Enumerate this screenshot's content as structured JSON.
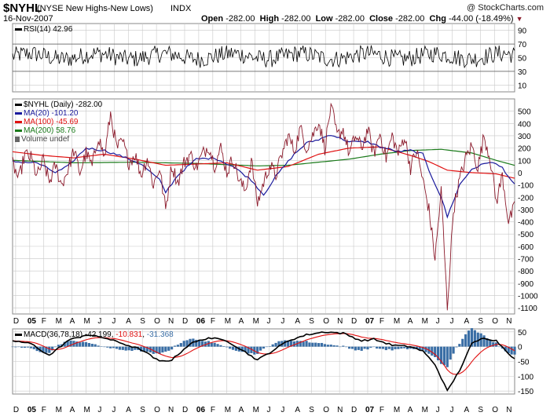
{
  "header": {
    "symbol": "$NYHL",
    "description": "(NYSE New Highs-New Lows)",
    "exchange": "INDX",
    "date": "16-Nov-2007",
    "watermark": "@ StockCharts.com",
    "open_label": "Open",
    "open": "-282.00",
    "high_label": "High",
    "high": "-282.00",
    "low_label": "Low",
    "low": "-282.00",
    "close_label": "Close",
    "close": "-282.00",
    "chg_label": "Chg",
    "chg": "-44.00 (-18.49%)",
    "down_marker": "▼"
  },
  "colors": {
    "price": "#8b1a2b",
    "ma20": "#1a1a9c",
    "ma100": "#e01010",
    "ma200": "#1a7a1a",
    "macd": "#000000",
    "signal": "#e01010",
    "histogram": "#3a6ea5",
    "grid": "#c8c8c8",
    "panel_border": "#888888"
  },
  "chart_data": [
    {
      "type": "line",
      "panel": "RSI",
      "label": "RSI(14) 42.96",
      "ylim": [
        0,
        100
      ],
      "yticks": [
        10,
        30,
        50,
        70,
        90
      ],
      "reference_lines": [
        30,
        70
      ],
      "last_value": 42.96
    },
    {
      "type": "line",
      "panel": "price",
      "title": "$NYHL (Daily) -282.00",
      "ylim": [
        -1150,
        600
      ],
      "yticks": [
        500,
        400,
        300,
        200,
        100,
        0,
        -100,
        -200,
        -300,
        -400,
        -500,
        -600,
        -700,
        -800,
        -900,
        -1000,
        -1100
      ],
      "series": [
        {
          "name": "$NYHL (Daily) -282.00",
          "color_key": "price",
          "points": [
            [
              0,
              80
            ],
            [
              2,
              -60
            ],
            [
              4,
              150
            ],
            [
              6,
              120
            ],
            [
              8,
              -30
            ],
            [
              10,
              100
            ],
            [
              12,
              -80
            ],
            [
              14,
              60
            ],
            [
              16,
              -100
            ],
            [
              18,
              20
            ],
            [
              20,
              180
            ],
            [
              22,
              0
            ],
            [
              24,
              160
            ],
            [
              26,
              50
            ],
            [
              28,
              300
            ],
            [
              30,
              120
            ],
            [
              32,
              480
            ],
            [
              34,
              200
            ],
            [
              36,
              250
            ],
            [
              38,
              80
            ],
            [
              40,
              150
            ],
            [
              42,
              -20
            ],
            [
              44,
              120
            ],
            [
              46,
              -100
            ],
            [
              48,
              40
            ],
            [
              50,
              -300
            ],
            [
              52,
              60
            ],
            [
              54,
              -80
            ],
            [
              56,
              80
            ],
            [
              58,
              150
            ],
            [
              60,
              40
            ],
            [
              62,
              150
            ],
            [
              64,
              220
            ],
            [
              66,
              60
            ],
            [
              68,
              200
            ],
            [
              70,
              0
            ],
            [
              72,
              120
            ],
            [
              74,
              -60
            ],
            [
              76,
              -150
            ],
            [
              78,
              100
            ],
            [
              80,
              -250
            ],
            [
              82,
              -80
            ],
            [
              84,
              60
            ],
            [
              86,
              -20
            ],
            [
              88,
              150
            ],
            [
              90,
              300
            ],
            [
              92,
              180
            ],
            [
              94,
              360
            ],
            [
              96,
              200
            ],
            [
              98,
              300
            ],
            [
              100,
              420
            ],
            [
              102,
              200
            ],
            [
              104,
              550
            ],
            [
              106,
              300
            ],
            [
              108,
              350
            ],
            [
              110,
              150
            ],
            [
              112,
              300
            ],
            [
              114,
              200
            ],
            [
              116,
              350
            ],
            [
              118,
              150
            ],
            [
              120,
              320
            ],
            [
              122,
              120
            ],
            [
              124,
              300
            ],
            [
              126,
              150
            ],
            [
              128,
              300
            ],
            [
              130,
              40
            ],
            [
              132,
              180
            ],
            [
              134,
              -60
            ],
            [
              136,
              -300
            ],
            [
              138,
              -700
            ],
            [
              140,
              -150
            ],
            [
              142,
              -1100
            ],
            [
              144,
              -300
            ],
            [
              146,
              -60
            ],
            [
              148,
              120
            ],
            [
              150,
              220
            ],
            [
              152,
              40
            ],
            [
              154,
              300
            ],
            [
              156,
              120
            ],
            [
              158,
              -240
            ],
            [
              160,
              -20
            ],
            [
              162,
              -400
            ],
            [
              164,
              -282
            ]
          ]
        },
        {
          "name": "MA(20) -101.20",
          "color_key": "ma20",
          "points": [
            [
              0,
              90
            ],
            [
              8,
              80
            ],
            [
              14,
              0
            ],
            [
              18,
              50
            ],
            [
              24,
              200
            ],
            [
              30,
              180
            ],
            [
              36,
              130
            ],
            [
              42,
              70
            ],
            [
              48,
              -60
            ],
            [
              50,
              -160
            ],
            [
              54,
              -20
            ],
            [
              60,
              110
            ],
            [
              66,
              120
            ],
            [
              72,
              50
            ],
            [
              78,
              -60
            ],
            [
              82,
              -180
            ],
            [
              86,
              -30
            ],
            [
              92,
              150
            ],
            [
              96,
              240
            ],
            [
              100,
              270
            ],
            [
              104,
              310
            ],
            [
              110,
              250
            ],
            [
              116,
              250
            ],
            [
              120,
              210
            ],
            [
              126,
              170
            ],
            [
              130,
              180
            ],
            [
              134,
              150
            ],
            [
              136,
              20
            ],
            [
              140,
              -200
            ],
            [
              142,
              -360
            ],
            [
              146,
              -100
            ],
            [
              150,
              30
            ],
            [
              156,
              90
            ],
            [
              160,
              40
            ],
            [
              164,
              -101
            ]
          ]
        },
        {
          "name": "MA(100) -45.69",
          "color_key": "ma100",
          "points": [
            [
              0,
              170
            ],
            [
              10,
              140
            ],
            [
              20,
              120
            ],
            [
              30,
              150
            ],
            [
              40,
              110
            ],
            [
              50,
              60
            ],
            [
              60,
              70
            ],
            [
              70,
              80
            ],
            [
              80,
              20
            ],
            [
              90,
              50
            ],
            [
              100,
              150
            ],
            [
              110,
              200
            ],
            [
              120,
              210
            ],
            [
              130,
              140
            ],
            [
              136,
              90
            ],
            [
              142,
              20
            ],
            [
              150,
              0
            ],
            [
              158,
              -10
            ],
            [
              164,
              -46
            ]
          ]
        },
        {
          "name": "MA(200) 58.76",
          "color_key": "ma200",
          "points": [
            [
              0,
              100
            ],
            [
              20,
              80
            ],
            [
              40,
              85
            ],
            [
              60,
              75
            ],
            [
              80,
              55
            ],
            [
              90,
              60
            ],
            [
              100,
              85
            ],
            [
              110,
              110
            ],
            [
              120,
              150
            ],
            [
              130,
              180
            ],
            [
              140,
              190
            ],
            [
              150,
              160
            ],
            [
              158,
              100
            ],
            [
              164,
              59
            ]
          ]
        }
      ],
      "legend_extra": "Volume undef"
    },
    {
      "type": "line",
      "panel": "MACD",
      "label": "MACD(36,78,18) -42.199, -10.831, -31.368",
      "values": {
        "macd": "-42.199",
        "signal": "-10.831",
        "histogram": "-31.368"
      },
      "ylim": [
        -160,
        60
      ],
      "yticks": [
        50,
        0,
        -50,
        -100,
        -150
      ]
    }
  ],
  "x_axis": {
    "labels": [
      "D",
      "05",
      "F",
      "M",
      "A",
      "M",
      "J",
      "J",
      "A",
      "S",
      "O",
      "N",
      "D",
      "06",
      "F",
      "M",
      "A",
      "M",
      "J",
      "J",
      "A",
      "S",
      "O",
      "N",
      "D",
      "07",
      "F",
      "M",
      "A",
      "M",
      "J",
      "J",
      "A",
      "S",
      "O",
      "N"
    ],
    "bold": [
      "05",
      "06",
      "07"
    ]
  }
}
